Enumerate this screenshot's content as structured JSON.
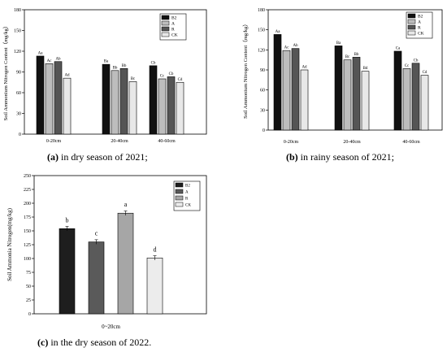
{
  "chart_data": [
    {
      "type": "bar",
      "panel": "(a)",
      "caption_label": "(a)",
      "caption_text": " in dry season of 2021;",
      "ylabel": "Soil Ammonium Nitrogen Content（mg/kg）",
      "xlabel": "",
      "ylim": [
        0,
        180
      ],
      "yticks": [
        0,
        30,
        60,
        90,
        120,
        150,
        180
      ],
      "categories": [
        "0-20cm",
        "20-40cm",
        "40-60cm"
      ],
      "grid": false,
      "legend_position": "top-right",
      "series": [
        {
          "name": "B2",
          "color": "#111111",
          "values": [
            113,
            101,
            99
          ],
          "labels": [
            "Aa",
            "Ba",
            "Cb"
          ]
        },
        {
          "name": "A",
          "color": "#bdbdbd",
          "values": [
            102,
            92,
            80
          ],
          "labels": [
            "Ac",
            "Bb",
            "Cc"
          ]
        },
        {
          "name": "R",
          "color": "#555555",
          "values": [
            105,
            95,
            83
          ],
          "labels": [
            "Ab",
            "Bb",
            "Cb"
          ]
        },
        {
          "name": "CK",
          "color": "#e8e8e8",
          "values": [
            81,
            76,
            75
          ],
          "labels": [
            "Ad",
            "Bc",
            "Cd"
          ]
        }
      ]
    },
    {
      "type": "bar",
      "panel": "(b)",
      "caption_label": "(b)",
      "caption_text": " in rainy season of 2021;",
      "ylabel": "Soil Ammonium Nitrogen Content（mg/kg）",
      "xlabel": "",
      "ylim": [
        0,
        180
      ],
      "yticks": [
        0,
        30,
        60,
        90,
        120,
        150,
        180
      ],
      "categories": [
        "0-20cm",
        "20-40cm",
        "40-60cm"
      ],
      "grid": false,
      "legend_position": "top-right",
      "series": [
        {
          "name": "B2",
          "color": "#111111",
          "values": [
            143,
            126,
            118
          ],
          "labels": [
            "Aa",
            "Ba",
            "Ca"
          ]
        },
        {
          "name": "A",
          "color": "#bdbdbd",
          "values": [
            119,
            105,
            92
          ],
          "labels": [
            "Ac",
            "Bc",
            "Cc"
          ]
        },
        {
          "name": "R",
          "color": "#555555",
          "values": [
            122,
            109,
            100
          ],
          "labels": [
            "Ab",
            "Bb",
            "Cb"
          ]
        },
        {
          "name": "CK",
          "color": "#e8e8e8",
          "values": [
            90,
            88,
            82
          ],
          "labels": [
            "Ad",
            "Bd",
            "Cd"
          ]
        }
      ]
    },
    {
      "type": "bar",
      "panel": "(c)",
      "caption_label": "(c)",
      "caption_text": " in the dry season of 2022.",
      "ylabel": "Soil Ammonia Nitrogen(mg/kg)",
      "xlabel": "",
      "ylim": [
        0,
        250
      ],
      "yticks": [
        0,
        25,
        50,
        75,
        100,
        125,
        150,
        175,
        200,
        225,
        250
      ],
      "categories": [
        "0~20cm"
      ],
      "grid": false,
      "legend_position": "top-right",
      "series": [
        {
          "name": "B2",
          "color": "#1e1e1e",
          "values": [
            154
          ],
          "labels": [
            "b"
          ]
        },
        {
          "name": "A",
          "color": "#5a5a5a",
          "values": [
            130
          ],
          "labels": [
            "c"
          ]
        },
        {
          "name": "R",
          "color": "#a6a6a6",
          "values": [
            182
          ],
          "labels": [
            "a"
          ]
        },
        {
          "name": "CK",
          "color": "#ececec",
          "values": [
            101
          ],
          "labels": [
            "d"
          ]
        }
      ]
    }
  ]
}
